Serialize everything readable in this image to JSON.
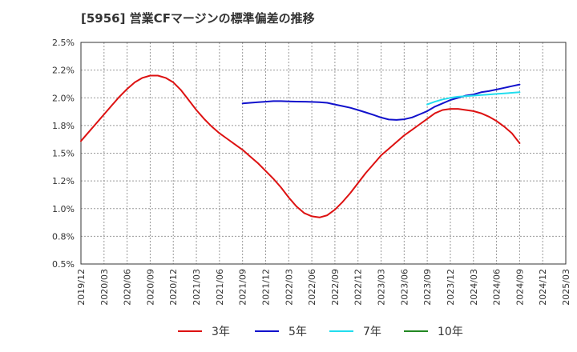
{
  "chart_data": {
    "type": "line",
    "title": "[5956]  営業CFマージンの標準偏差の推移",
    "xlabel": "",
    "ylabel": "",
    "x_ticks": [
      "2019/12",
      "2020/03",
      "2020/06",
      "2020/09",
      "2020/12",
      "2021/03",
      "2021/06",
      "2021/09",
      "2021/12",
      "2022/03",
      "2022/06",
      "2022/09",
      "2022/12",
      "2023/03",
      "2023/06",
      "2023/09",
      "2023/12",
      "2024/03",
      "2024/06",
      "2024/09",
      "2024/12",
      "2025/03"
    ],
    "y_ticks": [
      "0.5%",
      "0.8%",
      "1.0%",
      "1.2%",
      "1.5%",
      "1.8%",
      "2.0%",
      "2.2%",
      "2.5%"
    ],
    "ylim": [
      0.5,
      2.5
    ],
    "grid": true,
    "legend_position": "bottom",
    "series": [
      {
        "name": "3年",
        "color": "#dd1111",
        "x": [
          "2019/12",
          "2020/01",
          "2020/02",
          "2020/03",
          "2020/04",
          "2020/05",
          "2020/06",
          "2020/07",
          "2020/08",
          "2020/09",
          "2020/10",
          "2020/11",
          "2020/12",
          "2021/01",
          "2021/02",
          "2021/03",
          "2021/04",
          "2021/05",
          "2021/06",
          "2021/07",
          "2021/08",
          "2021/09",
          "2021/10",
          "2021/11",
          "2021/12",
          "2022/01",
          "2022/02",
          "2022/03",
          "2022/04",
          "2022/05",
          "2022/06",
          "2022/07",
          "2022/08",
          "2022/09",
          "2022/10",
          "2022/11",
          "2022/12",
          "2023/01",
          "2023/02",
          "2023/03",
          "2023/04",
          "2023/05",
          "2023/06",
          "2023/07",
          "2023/08",
          "2023/09",
          "2023/10",
          "2023/11",
          "2023/12",
          "2024/01",
          "2024/02",
          "2024/03",
          "2024/04",
          "2024/05",
          "2024/06",
          "2024/07",
          "2024/08",
          "2024/09"
        ],
        "values": [
          1.61,
          1.69,
          1.77,
          1.85,
          1.93,
          2.01,
          2.08,
          2.14,
          2.18,
          2.2,
          2.2,
          2.18,
          2.14,
          2.07,
          1.98,
          1.89,
          1.81,
          1.74,
          1.68,
          1.63,
          1.58,
          1.53,
          1.47,
          1.41,
          1.34,
          1.27,
          1.19,
          1.1,
          1.02,
          0.96,
          0.93,
          0.92,
          0.94,
          0.99,
          1.06,
          1.14,
          1.23,
          1.32,
          1.4,
          1.48,
          1.54,
          1.6,
          1.66,
          1.71,
          1.76,
          1.81,
          1.86,
          1.89,
          1.9,
          1.9,
          1.89,
          1.88,
          1.86,
          1.83,
          1.79,
          1.74,
          1.68,
          1.59
        ]
      },
      {
        "name": "5年",
        "color": "#1111cc",
        "x": [
          "2021/09",
          "2021/10",
          "2021/11",
          "2021/12",
          "2022/01",
          "2022/02",
          "2022/03",
          "2022/04",
          "2022/05",
          "2022/06",
          "2022/07",
          "2022/08",
          "2022/09",
          "2022/10",
          "2022/11",
          "2022/12",
          "2023/01",
          "2023/02",
          "2023/03",
          "2023/04",
          "2023/05",
          "2023/06",
          "2023/07",
          "2023/08",
          "2023/09",
          "2023/10",
          "2023/11",
          "2023/12",
          "2024/01",
          "2024/02",
          "2024/03",
          "2024/04",
          "2024/05",
          "2024/06",
          "2024/07",
          "2024/08",
          "2024/09"
        ],
        "values": [
          1.95,
          1.955,
          1.96,
          1.965,
          1.97,
          1.97,
          1.968,
          1.966,
          1.965,
          1.963,
          1.961,
          1.955,
          1.94,
          1.925,
          1.91,
          1.89,
          1.868,
          1.846,
          1.822,
          1.804,
          1.8,
          1.806,
          1.822,
          1.85,
          1.88,
          1.92,
          1.95,
          1.98,
          2.0,
          2.02,
          2.03,
          2.05,
          2.06,
          2.075,
          2.09,
          2.105,
          2.12
        ]
      },
      {
        "name": "7年",
        "color": "#22ddee",
        "x": [
          "2023/09",
          "2023/10",
          "2023/11",
          "2023/12",
          "2024/01",
          "2024/02",
          "2024/03",
          "2024/04",
          "2024/05",
          "2024/06",
          "2024/07",
          "2024/08",
          "2024/09"
        ],
        "values": [
          1.94,
          1.965,
          1.985,
          2.0,
          2.01,
          2.015,
          2.02,
          2.025,
          2.03,
          2.035,
          2.04,
          2.045,
          2.05
        ]
      },
      {
        "name": "10年",
        "color": "#228822",
        "x": [],
        "values": []
      }
    ]
  }
}
